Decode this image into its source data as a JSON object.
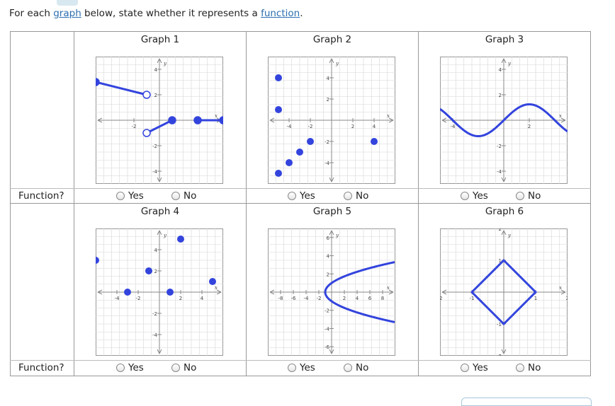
{
  "prompt": {
    "before": "For each ",
    "link1": "graph",
    "middle": " below, state whether it represents a ",
    "link2": "function",
    "after": "."
  },
  "row_label": "Function?",
  "options": {
    "yes": "Yes",
    "no": "No"
  },
  "graphs": [
    {
      "title": "Graph 1",
      "xrange": [
        -5,
        5
      ],
      "yrange": [
        -5,
        5
      ],
      "x_ticks": [
        "-2"
      ],
      "y_ticks": [
        "4",
        "2",
        "-2",
        "-4"
      ],
      "axis_labels": {
        "x": "x",
        "y": "y"
      },
      "segments": [
        {
          "from": [
            -5,
            3
          ],
          "to": [
            -1,
            2
          ],
          "from_closed": true,
          "to_closed": false
        },
        {
          "from": [
            -1,
            -1
          ],
          "to": [
            1,
            0
          ],
          "from_closed": false,
          "to_closed": true
        },
        {
          "from": [
            3,
            0
          ],
          "to": [
            5,
            0
          ],
          "from_closed": true,
          "to_closed": true
        }
      ]
    },
    {
      "title": "Graph 2",
      "xrange": [
        -6,
        6
      ],
      "yrange": [
        -6,
        6
      ],
      "x_ticks": [
        "-4",
        "-2",
        "2",
        "4"
      ],
      "y_ticks": [
        "4",
        "2",
        "-2",
        "-4"
      ],
      "axis_labels": {
        "x": "x",
        "y": "y"
      },
      "points": [
        [
          -5,
          4
        ],
        [
          -5,
          1
        ],
        [
          -5,
          -5
        ],
        [
          -4,
          -4
        ],
        [
          -3,
          -3
        ],
        [
          -2,
          -2
        ],
        [
          4,
          -2
        ]
      ]
    },
    {
      "title": "Graph 3",
      "xrange": [
        -5,
        5
      ],
      "yrange": [
        -5,
        5
      ],
      "x_ticks": [
        "-4",
        "2"
      ],
      "y_ticks": [
        "4",
        "2",
        "-2",
        "-4"
      ],
      "axis_labels": {
        "x": "x",
        "y": "y"
      },
      "curve": "wave"
    },
    {
      "title": "Graph 4",
      "xrange": [
        -6,
        6
      ],
      "yrange": [
        -6,
        6
      ],
      "x_ticks": [
        "-4",
        "-2",
        "2",
        "4"
      ],
      "y_ticks": [
        "4",
        "2",
        "-2",
        "-4"
      ],
      "axis_labels": {
        "x": "x",
        "y": "y"
      },
      "points": [
        [
          -6,
          3
        ],
        [
          -3,
          0
        ],
        [
          -1,
          2
        ],
        [
          1,
          0
        ],
        [
          2,
          5
        ],
        [
          5,
          1
        ]
      ]
    },
    {
      "title": "Graph 5",
      "xrange": [
        -10,
        10
      ],
      "yrange": [
        -7,
        7
      ],
      "x_ticks": [
        "-8",
        "-6",
        "-4",
        "-2",
        "2",
        "4",
        "6",
        "8"
      ],
      "y_ticks": [
        "6",
        "4",
        "2",
        "-2",
        "-4",
        "-6"
      ],
      "axis_labels": {
        "x": "x",
        "y": "y"
      },
      "curve": "parabola"
    },
    {
      "title": "Graph 6",
      "xrange": [
        -2,
        2
      ],
      "yrange": [
        -2,
        2
      ],
      "x_ticks": [
        "-2",
        "-1",
        "1",
        "2"
      ],
      "y_ticks": [
        "2",
        "1",
        "-1",
        "-2"
      ],
      "axis_labels": {
        "x": "x",
        "y": "y"
      },
      "curve": "diamond"
    }
  ],
  "colors": {
    "curve": "#3344dd",
    "grid": "#d6d6d6",
    "axis": "#888888",
    "border": "#999999"
  }
}
